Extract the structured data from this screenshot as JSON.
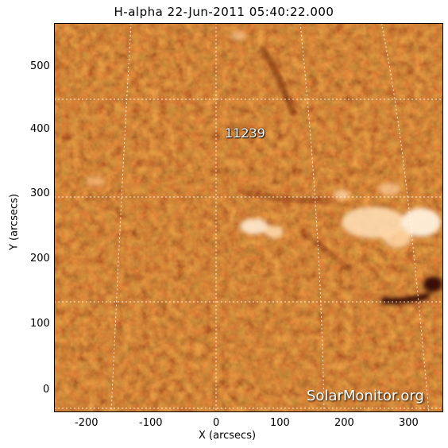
{
  "title": "H-alpha 22-Jun-2011 05:40:22.000",
  "xlabel": "X (arcsecs)",
  "ylabel": "Y (arcsecs)",
  "x_ticks": [
    "-200",
    "-100",
    "0",
    "100",
    "200",
    "300"
  ],
  "y_ticks": [
    "0",
    "100",
    "200",
    "300",
    "400",
    "500"
  ],
  "region_label": "11239",
  "watermark": "SolarMonitor.org",
  "colors": {
    "base": "#c2410c",
    "dark": "#5a1204",
    "bright": "#ffe9d0",
    "grid": "#ffffff"
  }
}
